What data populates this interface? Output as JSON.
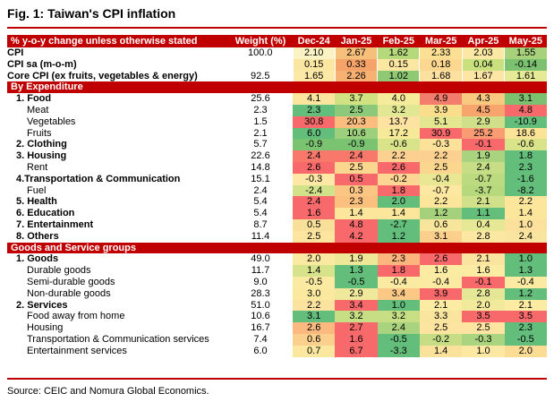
{
  "title": "Fig. 1: Taiwan's CPI inflation",
  "source": "Source: CEIC and Nomura Global Economics.",
  "colors": {
    "accent": "#c00000"
  },
  "header": {
    "label": "% y-o-y change unless otherwise stated",
    "weight": "Weight (%)",
    "months": [
      "Dec-24",
      "Jan-25",
      "Feb-25",
      "Mar-25",
      "Apr-25",
      "May-25"
    ]
  },
  "rows": [
    {
      "kind": "top",
      "label": "CPI",
      "weight": "100.0",
      "values": [
        "2.10",
        "2.67",
        "1.62",
        "2.33",
        "2.03",
        "1.55"
      ],
      "colors": [
        "#fbf3c3",
        "#f6c07a",
        "#b6d97b",
        "#fbdf93",
        "#fbe8a4",
        "#a8d17b"
      ]
    },
    {
      "kind": "top",
      "label": "CPI sa (m-o-m)",
      "weight": "",
      "values": [
        "0.15",
        "0.33",
        "0.15",
        "0.18",
        "0.04",
        "-0.14"
      ],
      "colors": [
        "#fbe6a2",
        "#f6a36a",
        "#fbe6a2",
        "#fbd78f",
        "#c9e07f",
        "#7cc16f"
      ]
    },
    {
      "kind": "top",
      "label": "Core CPI (ex fruits, vegetables & energy)",
      "weight": "92.5",
      "values": [
        "1.65",
        "2.26",
        "1.02",
        "1.68",
        "1.67",
        "1.61"
      ],
      "colors": [
        "#fde9a7",
        "#f7b173",
        "#8fc973",
        "#fce0a0",
        "#fde5a5",
        "#e6e996"
      ]
    },
    {
      "kind": "section",
      "label": "By Expenditure"
    },
    {
      "kind": "bold",
      "label": "1. Food",
      "weight": "25.6",
      "values": [
        "4.1",
        "3.7",
        "4.0",
        "4.9",
        "4.3",
        "3.1"
      ],
      "colors": [
        "#fbe59f",
        "#d1e283",
        "#f6ea9b",
        "#f27d6d",
        "#f9c97f",
        "#7cc16f"
      ]
    },
    {
      "kind": "sub",
      "label": "Meat",
      "weight": "2.3",
      "values": [
        "2.3",
        "2.5",
        "3.2",
        "3.9",
        "4.5",
        "4.8"
      ],
      "colors": [
        "#63be7b",
        "#8cc97a",
        "#e1e792",
        "#fbdd8e",
        "#f7a46d",
        "#f8696b"
      ]
    },
    {
      "kind": "sub",
      "label": "Vegetables",
      "weight": "1.5",
      "values": [
        "30.8",
        "20.3",
        "13.7",
        "5.1",
        "2.9",
        "-10.9"
      ],
      "colors": [
        "#f8696b",
        "#fbbd7d",
        "#fde2a1",
        "#e4e690",
        "#d0e08a",
        "#63be7b"
      ]
    },
    {
      "kind": "sub",
      "label": "Fruits",
      "weight": "2.1",
      "values": [
        "6.0",
        "10.6",
        "17.2",
        "30.9",
        "25.2",
        "18.6"
      ],
      "colors": [
        "#63be7b",
        "#9dd07c",
        "#f6e99a",
        "#f8696b",
        "#f99c73",
        "#fbe397"
      ]
    },
    {
      "kind": "bold",
      "label": "2. Clothing",
      "weight": "5.7",
      "values": [
        "-0.9",
        "-0.9",
        "-0.6",
        "-0.3",
        "-0.1",
        "-0.6"
      ],
      "colors": [
        "#7ac371",
        "#7ac371",
        "#d9e48a",
        "#fbe19a",
        "#f8696b",
        "#d9e48a"
      ]
    },
    {
      "kind": "bold",
      "label": "3. Housing",
      "weight": "22.6",
      "values": [
        "2.4",
        "2.4",
        "2.2",
        "2.2",
        "1.9",
        "1.8"
      ],
      "colors": [
        "#f8786c",
        "#f8786c",
        "#fbd090",
        "#fbd090",
        "#a9d37e",
        "#63be7b"
      ]
    },
    {
      "kind": "sub",
      "label": "Rent",
      "weight": "14.8",
      "values": [
        "2.6",
        "2.5",
        "2.6",
        "2.5",
        "2.4",
        "2.3"
      ],
      "colors": [
        "#f8696b",
        "#fbd68f",
        "#f8696b",
        "#fbd68f",
        "#c7dd86",
        "#63be7b"
      ]
    },
    {
      "kind": "bold",
      "label": "4.Transportation & Communication",
      "weight": "15.1",
      "values": [
        "-0.3",
        "0.5",
        "-0.2",
        "-0.4",
        "-0.7",
        "-1.6"
      ],
      "colors": [
        "#fee8a5",
        "#f8696b",
        "#fed693",
        "#e9e794",
        "#bcdb80",
        "#63be7b"
      ]
    },
    {
      "kind": "sub",
      "label": "Fuel",
      "weight": "2.4",
      "values": [
        "-2.4",
        "0.3",
        "1.8",
        "-0.7",
        "-3.7",
        "-8.2"
      ],
      "colors": [
        "#d2e28a",
        "#fbc684",
        "#f8696b",
        "#fde8a1",
        "#b6d97e",
        "#63be7b"
      ]
    },
    {
      "kind": "bold",
      "label": "5. Health",
      "weight": "5.4",
      "values": [
        "2.4",
        "2.3",
        "2.0",
        "2.2",
        "2.1",
        "2.2"
      ],
      "colors": [
        "#f8696b",
        "#fbc07e",
        "#63be7b",
        "#fbe69c",
        "#d0e189",
        "#fbe69c"
      ]
    },
    {
      "kind": "bold",
      "label": "6. Education",
      "weight": "5.4",
      "values": [
        "1.6",
        "1.4",
        "1.4",
        "1.2",
        "1.1",
        "1.4"
      ],
      "colors": [
        "#f8696b",
        "#fbe69c",
        "#fbe69c",
        "#a5d17c",
        "#63be7b",
        "#fbe69c"
      ]
    },
    {
      "kind": "bold",
      "label": "7. Entertainment",
      "weight": "8.7",
      "values": [
        "0.5",
        "4.8",
        "-2.7",
        "0.6",
        "0.4",
        "1.0"
      ],
      "colors": [
        "#f8e09a",
        "#f8696b",
        "#63be7b",
        "#f7e59b",
        "#e7e896",
        "#fbe19b"
      ]
    },
    {
      "kind": "bold",
      "label": "8. Others",
      "weight": "11.4",
      "values": [
        "2.5",
        "4.2",
        "1.2",
        "3.1",
        "2.8",
        "2.4"
      ],
      "colors": [
        "#fde59f",
        "#f8696b",
        "#63be7b",
        "#fbd08d",
        "#fce8a2",
        "#fae5a0"
      ]
    },
    {
      "kind": "section",
      "label": "Goods and Service groups"
    },
    {
      "kind": "bold",
      "label": "1. Goods",
      "weight": "49.0",
      "values": [
        "2.0",
        "1.9",
        "2.3",
        "2.6",
        "2.1",
        "1.0"
      ],
      "colors": [
        "#fae9a0",
        "#ede897",
        "#fbb57d",
        "#f8696b",
        "#fbe3a0",
        "#63be7b"
      ]
    },
    {
      "kind": "sub",
      "label": "Durable goods",
      "weight": "11.7",
      "values": [
        "1.4",
        "1.3",
        "1.8",
        "1.6",
        "1.6",
        "1.3"
      ],
      "colors": [
        "#d6e38a",
        "#63be7b",
        "#f8696b",
        "#fbeba3",
        "#fbeba3",
        "#63be7b"
      ]
    },
    {
      "kind": "sub",
      "label": "Semi-durable goods",
      "weight": "9.0",
      "values": [
        "-0.5",
        "-0.5",
        "-0.4",
        "-0.4",
        "-0.1",
        "-0.4"
      ],
      "colors": [
        "#fbeaa1",
        "#63be7b",
        "#fbeaa1",
        "#fbeaa1",
        "#f8696b",
        "#fbeaa1"
      ]
    },
    {
      "kind": "sub",
      "label": "Non-durable goods",
      "weight": "28.3",
      "values": [
        "3.0",
        "2.9",
        "3.4",
        "3.9",
        "2.8",
        "1.2"
      ],
      "colors": [
        "#fbe9a0",
        "#f0e89a",
        "#fbc886",
        "#f8696b",
        "#e5e796",
        "#63be7b"
      ]
    },
    {
      "kind": "bold",
      "label": "2. Services",
      "weight": "51.0",
      "values": [
        "2.2",
        "3.4",
        "1.0",
        "2.1",
        "2.0",
        "2.1"
      ],
      "colors": [
        "#fbe39f",
        "#f8696b",
        "#63be7b",
        "#fbeba3",
        "#f1e99c",
        "#fbeba3"
      ]
    },
    {
      "kind": "sub",
      "label": "Food away from home",
      "weight": "10.6",
      "values": [
        "3.1",
        "3.2",
        "3.2",
        "3.3",
        "3.5",
        "3.5"
      ],
      "colors": [
        "#63be7b",
        "#c8de84",
        "#c8de84",
        "#fbe59e",
        "#f8696b",
        "#f8696b"
      ]
    },
    {
      "kind": "sub",
      "label": "Housing",
      "weight": "16.7",
      "values": [
        "2.6",
        "2.7",
        "2.4",
        "2.5",
        "2.5",
        "2.3"
      ],
      "colors": [
        "#fbb97f",
        "#f8696b",
        "#a9d37e",
        "#fde4a0",
        "#fde4a0",
        "#63be7b"
      ]
    },
    {
      "kind": "sub",
      "label": "Transportation & Communication services",
      "weight": "7.4",
      "values": [
        "0.6",
        "1.6",
        "-0.5",
        "-0.2",
        "-0.3",
        "-0.5"
      ],
      "colors": [
        "#fbd08d",
        "#f8696b",
        "#63be7b",
        "#c6dd86",
        "#aad47f",
        "#63be7b"
      ]
    },
    {
      "kind": "sub",
      "label": "Entertainment services",
      "weight": "6.0",
      "values": [
        "0.7",
        "6.7",
        "-3.3",
        "1.4",
        "1.0",
        "2.0"
      ],
      "colors": [
        "#fbe79e",
        "#f8696b",
        "#63be7b",
        "#fbe29c",
        "#fde9a3",
        "#fbdc95"
      ]
    }
  ]
}
